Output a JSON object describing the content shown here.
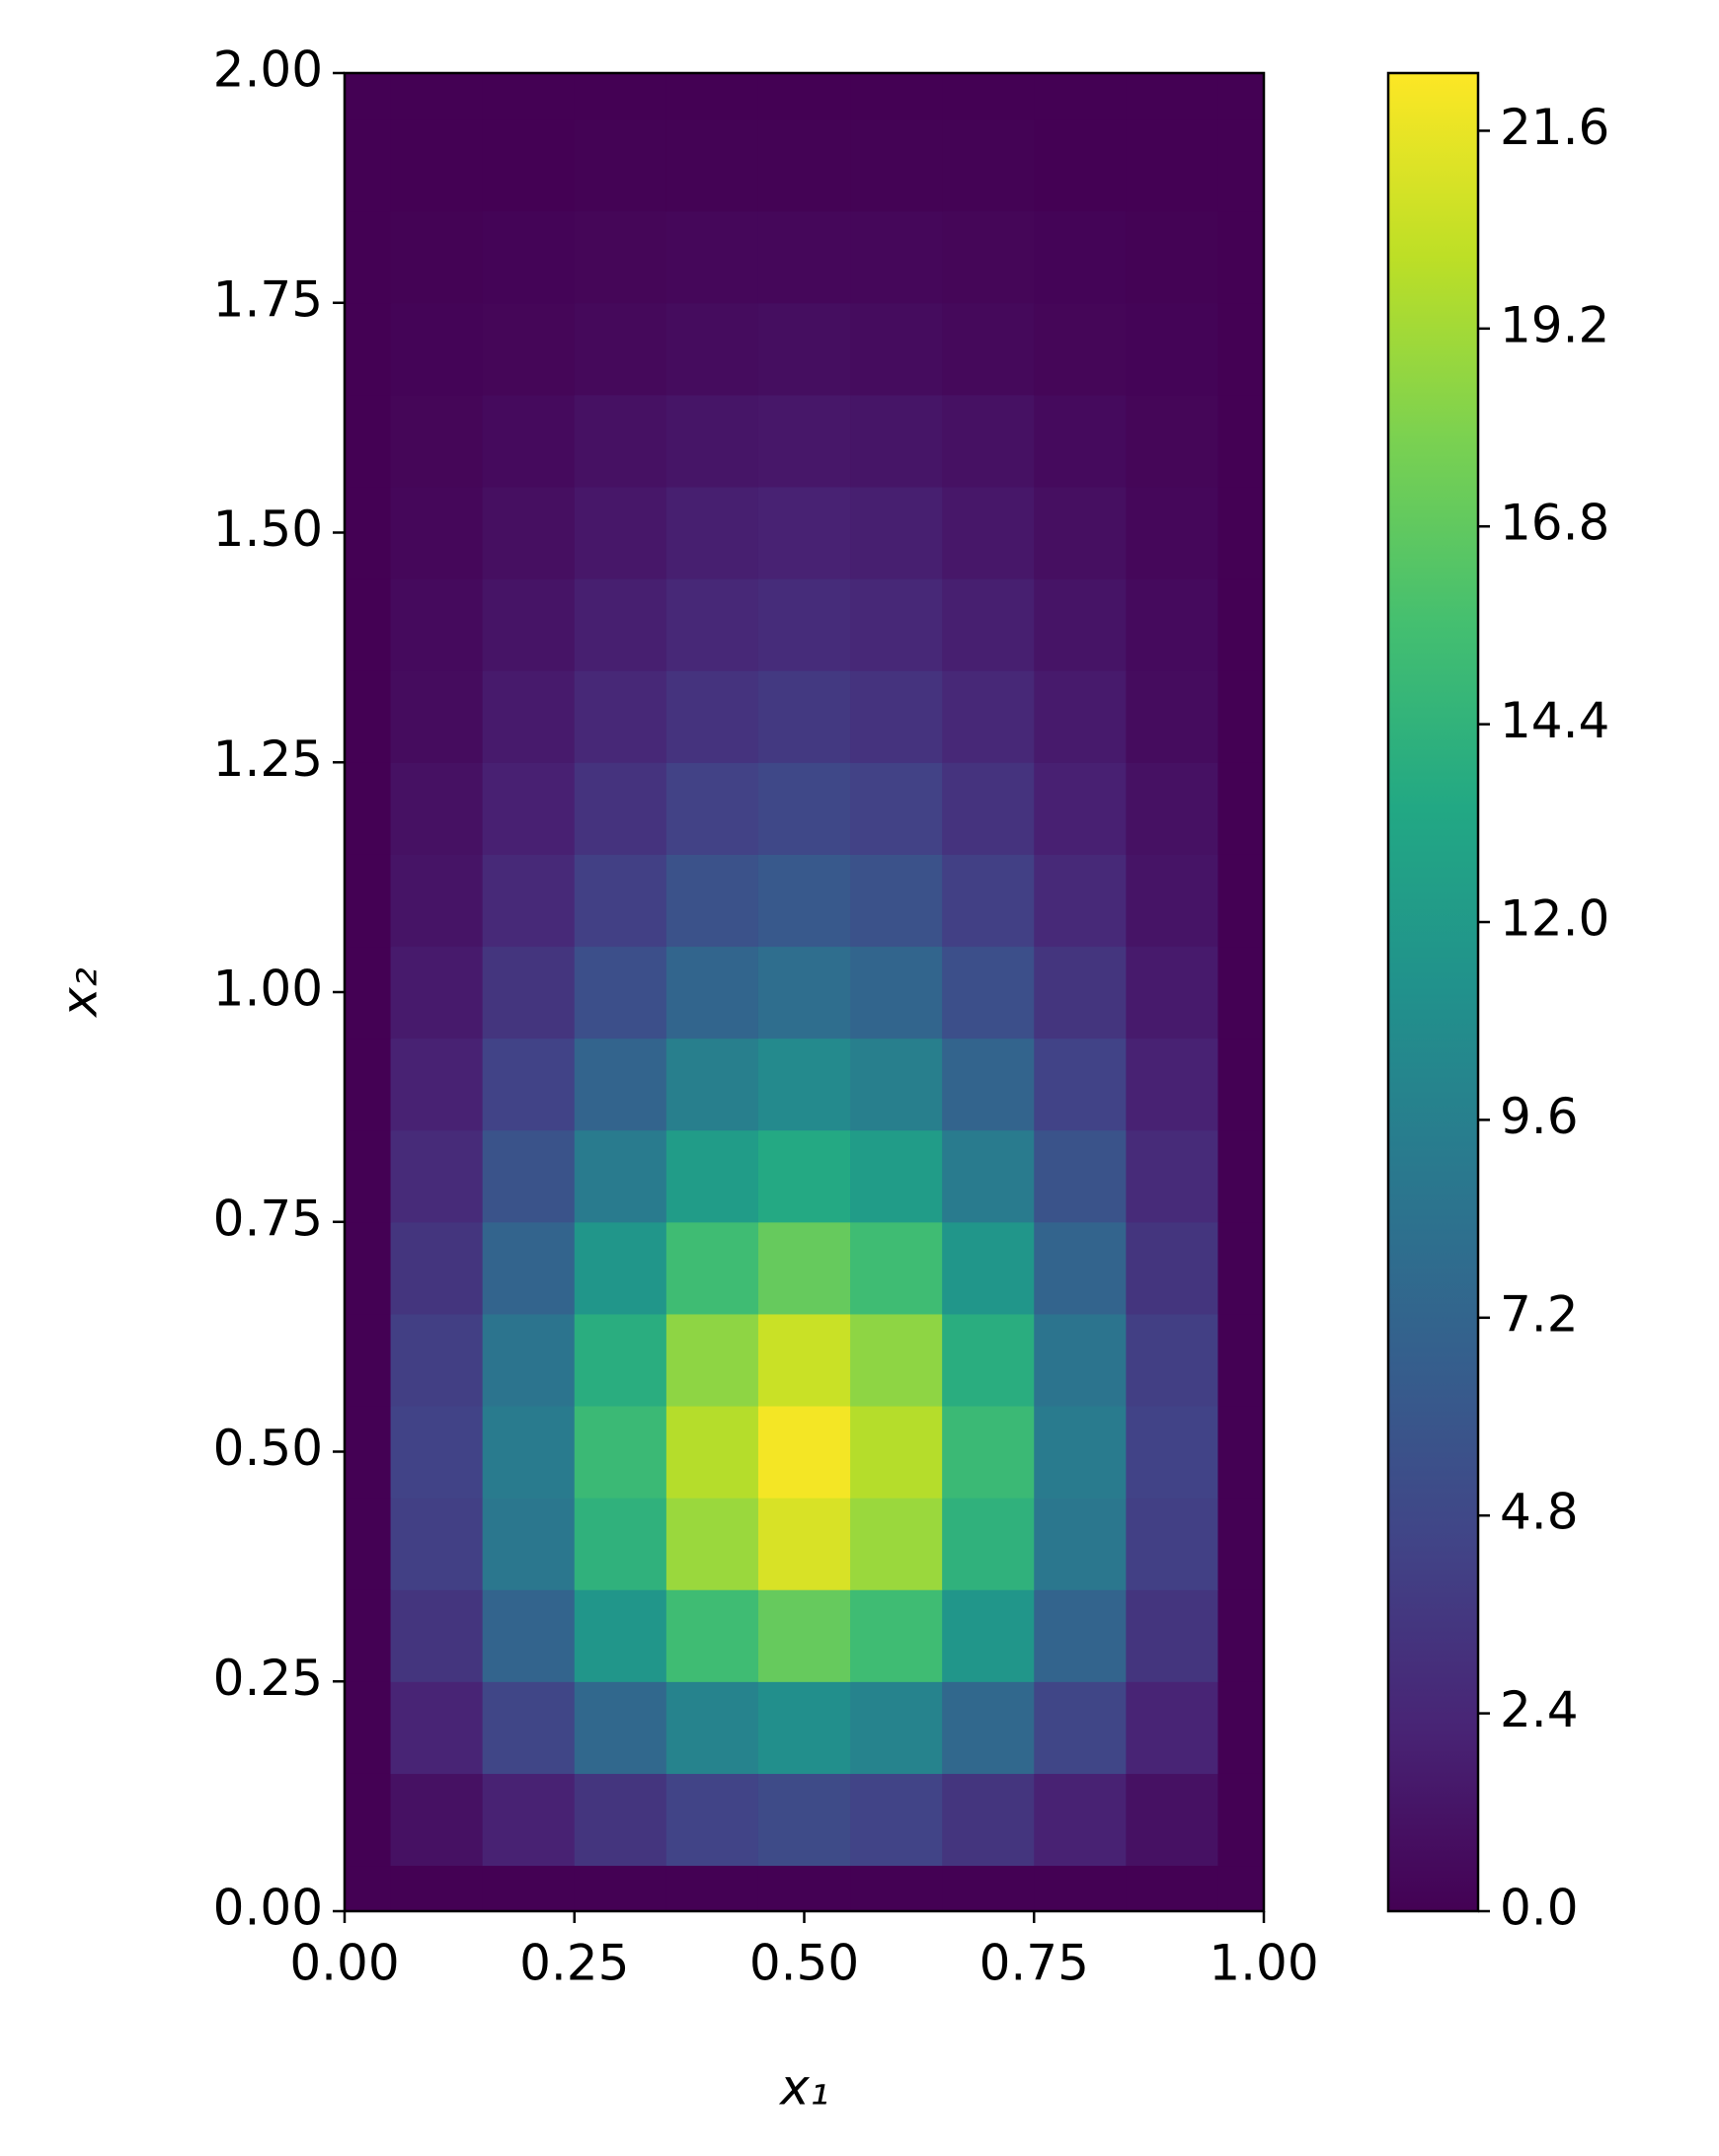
{
  "chart_data": {
    "type": "contour",
    "colormap": "viridis",
    "x_label": "x₁",
    "y_label": "x₂",
    "x": [
      0,
      0.1,
      0.2,
      0.3,
      0.4,
      0.5,
      0.6,
      0.7,
      0.8,
      0.9,
      1
    ],
    "y": [
      0,
      0.1,
      0.2,
      0.3,
      0.4,
      0.5,
      0.6,
      0.7,
      0.8,
      0.9,
      1,
      1.1,
      1.2,
      1.3,
      1.4,
      1.5,
      1.6,
      1.7,
      1.8,
      1.9,
      2
    ],
    "z": [
      [
        0,
        0,
        0,
        0,
        0,
        0,
        0,
        0,
        0,
        0,
        0
      ],
      [
        0,
        1.0,
        2.1,
        3.4,
        4.5,
        5.0,
        4.5,
        3.4,
        2.1,
        1.0,
        0
      ],
      [
        0,
        2.2,
        4.6,
        7.5,
        9.9,
        11,
        9.9,
        7.5,
        4.6,
        2.2,
        0
      ],
      [
        0,
        3.4,
        7.1,
        11.6,
        15.3,
        17,
        15.3,
        11.6,
        7.1,
        3.4,
        0
      ],
      [
        0,
        4.2,
        8.8,
        14.3,
        18.9,
        21,
        18.9,
        14.3,
        8.8,
        4.2,
        0
      ],
      [
        0,
        4.4,
        9.2,
        15.0,
        19.8,
        22,
        19.8,
        15.0,
        9.2,
        4.4,
        0
      ],
      [
        0,
        4.1,
        8.6,
        13.9,
        18.5,
        20.5,
        18.5,
        13.9,
        8.6,
        4.1,
        0
      ],
      [
        0,
        3.4,
        7.1,
        11.6,
        15.3,
        17,
        15.3,
        11.6,
        7.1,
        3.4,
        0
      ],
      [
        0,
        2.7,
        5.7,
        9.2,
        12.2,
        13.5,
        12.2,
        9.2,
        5.7,
        2.7,
        0
      ],
      [
        0,
        2.1,
        4.4,
        7.1,
        9.5,
        10.5,
        9.5,
        7.1,
        4.4,
        2.1,
        0
      ],
      [
        0,
        1.6,
        3.4,
        5.4,
        7.2,
        8,
        7.2,
        5.4,
        3.4,
        1.6,
        0
      ],
      [
        0,
        1.2,
        2.6,
        4.2,
        5.6,
        6.2,
        5.6,
        4.2,
        2.6,
        1.2,
        0
      ],
      [
        0,
        1.0,
        2.0,
        3.3,
        4.3,
        4.8,
        4.3,
        3.3,
        2.0,
        1.0,
        0
      ],
      [
        0,
        0.7,
        1.6,
        2.5,
        3.3,
        3.7,
        3.3,
        2.5,
        1.6,
        0.7,
        0
      ],
      [
        0,
        0.6,
        1.2,
        1.9,
        2.5,
        2.8,
        2.5,
        1.9,
        1.2,
        0.6,
        0
      ],
      [
        0,
        0.4,
        0.9,
        1.4,
        1.9,
        2.1,
        1.9,
        1.4,
        0.9,
        0.4,
        0
      ],
      [
        0,
        0.3,
        0.6,
        1.0,
        1.3,
        1.4,
        1.3,
        1.0,
        0.6,
        0.3,
        0
      ],
      [
        0,
        0.2,
        0.3,
        0.5,
        0.7,
        0.8,
        0.7,
        0.5,
        0.3,
        0.2,
        0
      ],
      [
        0,
        0.1,
        0.2,
        0.3,
        0.4,
        0.4,
        0.4,
        0.3,
        0.2,
        0.1,
        0
      ],
      [
        0,
        0,
        0,
        0.1,
        0.1,
        0.1,
        0.1,
        0.1,
        0,
        0,
        0
      ],
      [
        0,
        0,
        0,
        0,
        0,
        0,
        0,
        0,
        0,
        0,
        0
      ]
    ],
    "xlim": [
      0,
      1
    ],
    "xticks": [
      {
        "value": 0,
        "label": "0.00"
      },
      {
        "value": 0.25,
        "label": "0.25"
      },
      {
        "value": 0.5,
        "label": "0.50"
      },
      {
        "value": 0.75,
        "label": "0.75"
      },
      {
        "value": 1,
        "label": "1.00"
      }
    ],
    "ylim": [
      0,
      2
    ],
    "yticks": [
      {
        "value": 0,
        "label": "0.00"
      },
      {
        "value": 0.25,
        "label": "0.25"
      },
      {
        "value": 0.5,
        "label": "0.50"
      },
      {
        "value": 0.75,
        "label": "0.75"
      },
      {
        "value": 1,
        "label": "1.00"
      },
      {
        "value": 1.25,
        "label": "1.25"
      },
      {
        "value": 1.5,
        "label": "1.50"
      },
      {
        "value": 1.75,
        "label": "1.75"
      },
      {
        "value": 2,
        "label": "2.00"
      }
    ],
    "colorbar": {
      "lim": [
        0,
        22.3
      ],
      "ticks": [
        {
          "value": 0,
          "label": "0.0"
        },
        2.4,
        4.8,
        7.2,
        9.6,
        {
          "value": 12,
          "label": "12.0"
        },
        14.4,
        16.8,
        19.2,
        21.6
      ]
    }
  }
}
